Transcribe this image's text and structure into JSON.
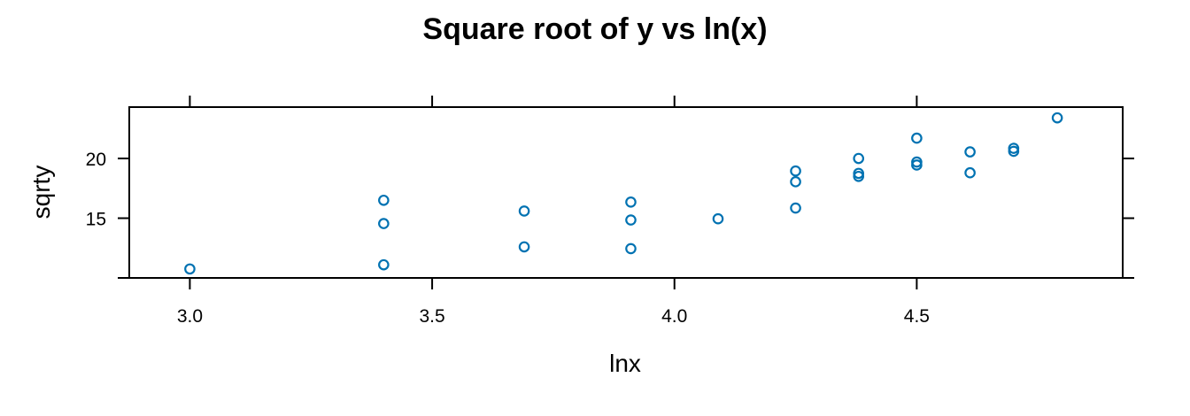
{
  "chart_data": {
    "type": "scatter",
    "title": "Square root of y vs ln(x)",
    "xlabel": "lnx",
    "ylabel": "sqrty",
    "xlim": [
      2.875,
      4.925
    ],
    "ylim": [
      10.0,
      24.3
    ],
    "xticks": [
      3.0,
      3.5,
      4.0,
      4.5
    ],
    "xtick_labels": [
      "3.0",
      "3.5",
      "4.0",
      "4.5"
    ],
    "yticks": [
      15,
      20
    ],
    "ytick_labels": [
      "15",
      "20"
    ],
    "grid": false,
    "marker": "open-circle",
    "point_color": "#0072b2",
    "points": [
      {
        "x": 3.0,
        "y": 10.75
      },
      {
        "x": 3.4,
        "y": 11.1
      },
      {
        "x": 3.4,
        "y": 14.55
      },
      {
        "x": 3.4,
        "y": 16.5
      },
      {
        "x": 3.69,
        "y": 12.6
      },
      {
        "x": 3.69,
        "y": 15.6
      },
      {
        "x": 3.91,
        "y": 12.45
      },
      {
        "x": 3.91,
        "y": 14.85
      },
      {
        "x": 3.91,
        "y": 16.35
      },
      {
        "x": 4.09,
        "y": 14.95
      },
      {
        "x": 4.25,
        "y": 15.85
      },
      {
        "x": 4.25,
        "y": 18.05
      },
      {
        "x": 4.25,
        "y": 18.95
      },
      {
        "x": 4.38,
        "y": 18.5
      },
      {
        "x": 4.38,
        "y": 18.75
      },
      {
        "x": 4.38,
        "y": 20.0
      },
      {
        "x": 4.5,
        "y": 19.45
      },
      {
        "x": 4.5,
        "y": 19.7
      },
      {
        "x": 4.5,
        "y": 21.7
      },
      {
        "x": 4.61,
        "y": 18.8
      },
      {
        "x": 4.61,
        "y": 20.55
      },
      {
        "x": 4.7,
        "y": 20.6
      },
      {
        "x": 4.7,
        "y": 20.85
      },
      {
        "x": 4.79,
        "y": 23.4
      }
    ]
  }
}
